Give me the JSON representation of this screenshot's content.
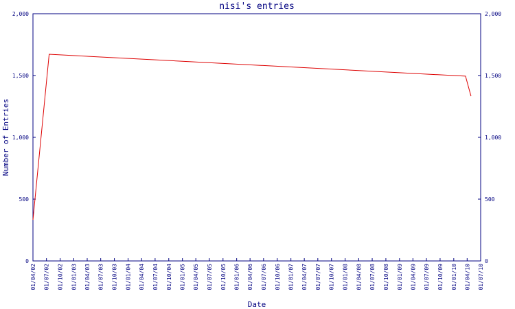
{
  "chart_data": {
    "type": "line",
    "title": "nisi's entries",
    "x_label": "Date",
    "y_label": "Number of Entries",
    "x": [
      "2002-04-01",
      "2002-07-19",
      "2010-03-21",
      "2010-04-27"
    ],
    "series": [
      {
        "name": "entries",
        "color": "#dd0000",
        "values": [
          333,
          1672,
          1495,
          1333
        ]
      }
    ],
    "xlim": [
      "2002-04-01",
      "2010-07-01"
    ],
    "xticks": [
      {
        "value": "2002-04-01",
        "label": "01/04/02"
      },
      {
        "value": "2002-07-01",
        "label": "01/07/02"
      },
      {
        "value": "2002-10-01",
        "label": "01/10/02"
      },
      {
        "value": "2003-01-01",
        "label": "01/01/03"
      },
      {
        "value": "2003-04-01",
        "label": "01/04/03"
      },
      {
        "value": "2003-07-01",
        "label": "01/07/03"
      },
      {
        "value": "2003-10-01",
        "label": "01/10/03"
      },
      {
        "value": "2004-01-01",
        "label": "01/01/04"
      },
      {
        "value": "2004-04-01",
        "label": "01/04/04"
      },
      {
        "value": "2004-07-01",
        "label": "01/07/04"
      },
      {
        "value": "2004-10-01",
        "label": "01/10/04"
      },
      {
        "value": "2005-01-01",
        "label": "01/01/05"
      },
      {
        "value": "2005-04-01",
        "label": "01/04/05"
      },
      {
        "value": "2005-07-01",
        "label": "01/07/05"
      },
      {
        "value": "2005-10-01",
        "label": "01/10/05"
      },
      {
        "value": "2006-01-01",
        "label": "01/01/06"
      },
      {
        "value": "2006-04-01",
        "label": "01/04/06"
      },
      {
        "value": "2006-07-01",
        "label": "01/07/06"
      },
      {
        "value": "2006-10-01",
        "label": "01/10/06"
      },
      {
        "value": "2007-01-01",
        "label": "01/01/07"
      },
      {
        "value": "2007-04-01",
        "label": "01/04/07"
      },
      {
        "value": "2007-07-01",
        "label": "01/07/07"
      },
      {
        "value": "2007-10-01",
        "label": "01/10/07"
      },
      {
        "value": "2008-01-01",
        "label": "01/01/08"
      },
      {
        "value": "2008-04-01",
        "label": "01/04/08"
      },
      {
        "value": "2008-07-01",
        "label": "01/07/08"
      },
      {
        "value": "2008-10-01",
        "label": "01/10/08"
      },
      {
        "value": "2009-01-01",
        "label": "01/01/09"
      },
      {
        "value": "2009-04-01",
        "label": "01/04/09"
      },
      {
        "value": "2009-07-01",
        "label": "01/07/09"
      },
      {
        "value": "2009-10-01",
        "label": "01/10/09"
      },
      {
        "value": "2010-01-01",
        "label": "01/01/10"
      },
      {
        "value": "2010-04-01",
        "label": "01/04/10"
      },
      {
        "value": "2010-07-01",
        "label": "01/07/10"
      }
    ],
    "ylim": [
      0,
      2000
    ],
    "yticks": [
      0,
      500,
      {
        "value": 1000,
        "label": "1,000"
      },
      {
        "value": 1500,
        "label": "1,500"
      },
      {
        "value": 2000,
        "label": "2,000"
      }
    ],
    "grid": false
  }
}
